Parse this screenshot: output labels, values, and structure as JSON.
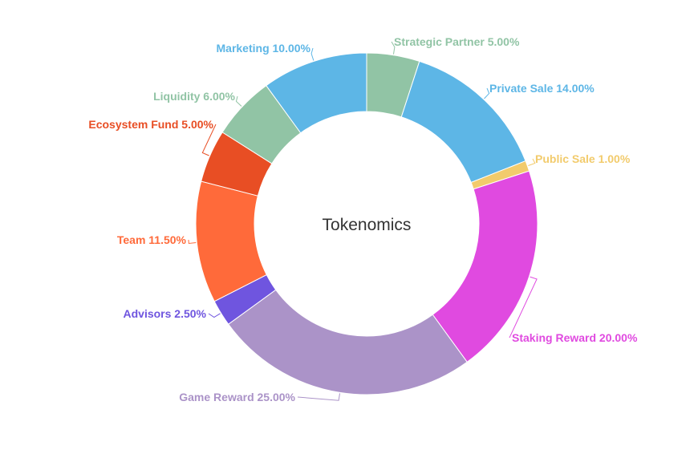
{
  "chart_data": {
    "type": "pie",
    "subtype": "donut",
    "title": "Tokenomics",
    "slices": [
      {
        "name": "Strategic Partner",
        "value": 5.0,
        "label": "Strategic Partner 5.00%",
        "color": "#91c4a5"
      },
      {
        "name": "Private Sale",
        "value": 14.0,
        "label": "Private Sale 14.00%",
        "color": "#5db6e6"
      },
      {
        "name": "Public Sale",
        "value": 1.0,
        "label": "Public Sale 1.00%",
        "color": "#f2cb6c"
      },
      {
        "name": "Staking Reward",
        "value": 20.0,
        "label": "Staking Reward 20.00%",
        "color": "#e04ae0"
      },
      {
        "name": "Game Reward",
        "value": 25.0,
        "label": "Game Reward 25.00%",
        "color": "#ab93c8"
      },
      {
        "name": "Advisors",
        "value": 2.5,
        "label": "Advisors 2.50%",
        "color": "#6f55df"
      },
      {
        "name": "Team",
        "value": 11.5,
        "label": "Team 11.50%",
        "color": "#ff6a3a"
      },
      {
        "name": "Ecosystem Fund",
        "value": 5.0,
        "label": "Ecosystem Fund 5.00%",
        "color": "#e84e24"
      },
      {
        "name": "Liquidity",
        "value": 6.0,
        "label": "Liquidity 6.00%",
        "color": "#91c4a5"
      },
      {
        "name": "Marketing",
        "value": 10.0,
        "label": "Marketing 10.00%",
        "color": "#5db6e6"
      }
    ],
    "legend": "none"
  }
}
